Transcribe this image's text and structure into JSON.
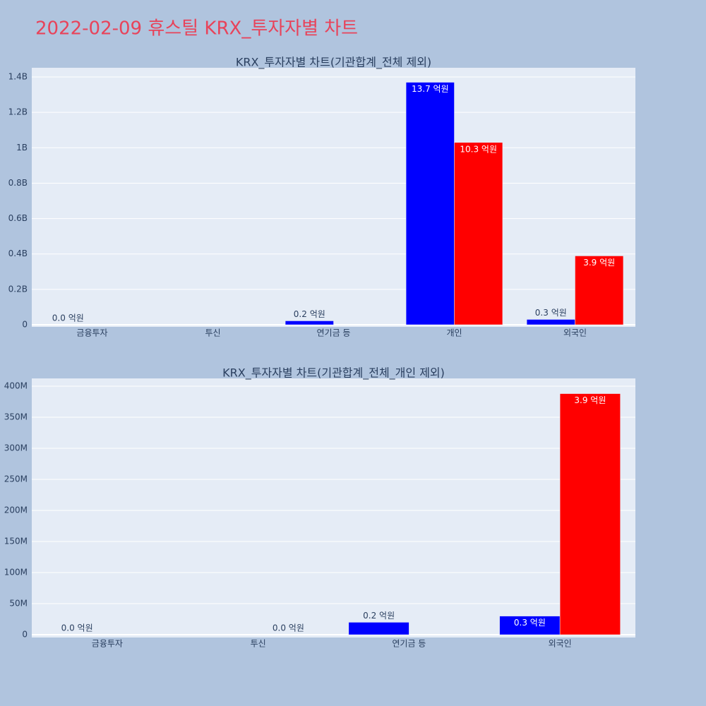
{
  "title": "2022-02-09 휴스틸 KRX_투자자별 차트",
  "chart_data": [
    {
      "type": "bar",
      "title": "KRX_투자자별 차트(기관합계_전체 제외)",
      "categories": [
        "금융투자",
        "투신",
        "연기금 등",
        "개인",
        "외국인"
      ],
      "series": [
        {
          "color": "#0000ff",
          "values": [
            0,
            null,
            22000000,
            1370000000,
            30000000
          ],
          "value_labels": [
            "0.0 억원",
            null,
            "0.2 억원",
            "13.7 억원",
            "0.3 억원"
          ]
        },
        {
          "color": "#ff0000",
          "values": [
            null,
            null,
            null,
            1030000000,
            389000000
          ],
          "value_labels": [
            null,
            null,
            null,
            "10.3 억원",
            "3.9 억원"
          ]
        }
      ],
      "ylim": [
        -12000000,
        1452000000
      ],
      "yticks": [
        0,
        {
          "value": 200000000,
          "label": "0.2B"
        },
        {
          "value": 400000000,
          "label": "0.4B"
        },
        {
          "value": 600000000,
          "label": "0.6B"
        },
        {
          "value": 800000000,
          "label": "0.8B"
        },
        {
          "value": 1000000000,
          "label": "1B"
        },
        {
          "value": 1200000000,
          "label": "1.2B"
        },
        {
          "value": 1400000000,
          "label": "1.4B"
        }
      ],
      "grid": true
    },
    {
      "type": "bar",
      "title": "KRX_투자자별 차트(기관합계_전체_개인 제외)",
      "categories": [
        "금융투자",
        "투신",
        "연기금 등",
        "외국인"
      ],
      "series": [
        {
          "color": "#0000ff",
          "values": [
            0,
            null,
            20000000,
            30000000
          ],
          "value_labels": [
            "0.0 억원",
            null,
            "0.2 억원",
            "0.3 억원"
          ]
        },
        {
          "color": "#ff0000",
          "values": [
            null,
            0,
            null,
            388000000
          ],
          "value_labels": [
            null,
            "0.0 억원",
            null,
            "3.9 억원"
          ]
        }
      ],
      "ylim": [
        -4500000,
        412500000
      ],
      "yticks": [
        0,
        {
          "value": 50000000,
          "label": "50M"
        },
        {
          "value": 100000000,
          "label": "100M"
        },
        {
          "value": 150000000,
          "label": "150M"
        },
        {
          "value": 200000000,
          "label": "200M"
        },
        {
          "value": 250000000,
          "label": "250M"
        },
        {
          "value": 300000000,
          "label": "300M"
        },
        {
          "value": 350000000,
          "label": "350M"
        },
        {
          "value": 400000000,
          "label": "400M"
        }
      ],
      "grid": true
    }
  ]
}
